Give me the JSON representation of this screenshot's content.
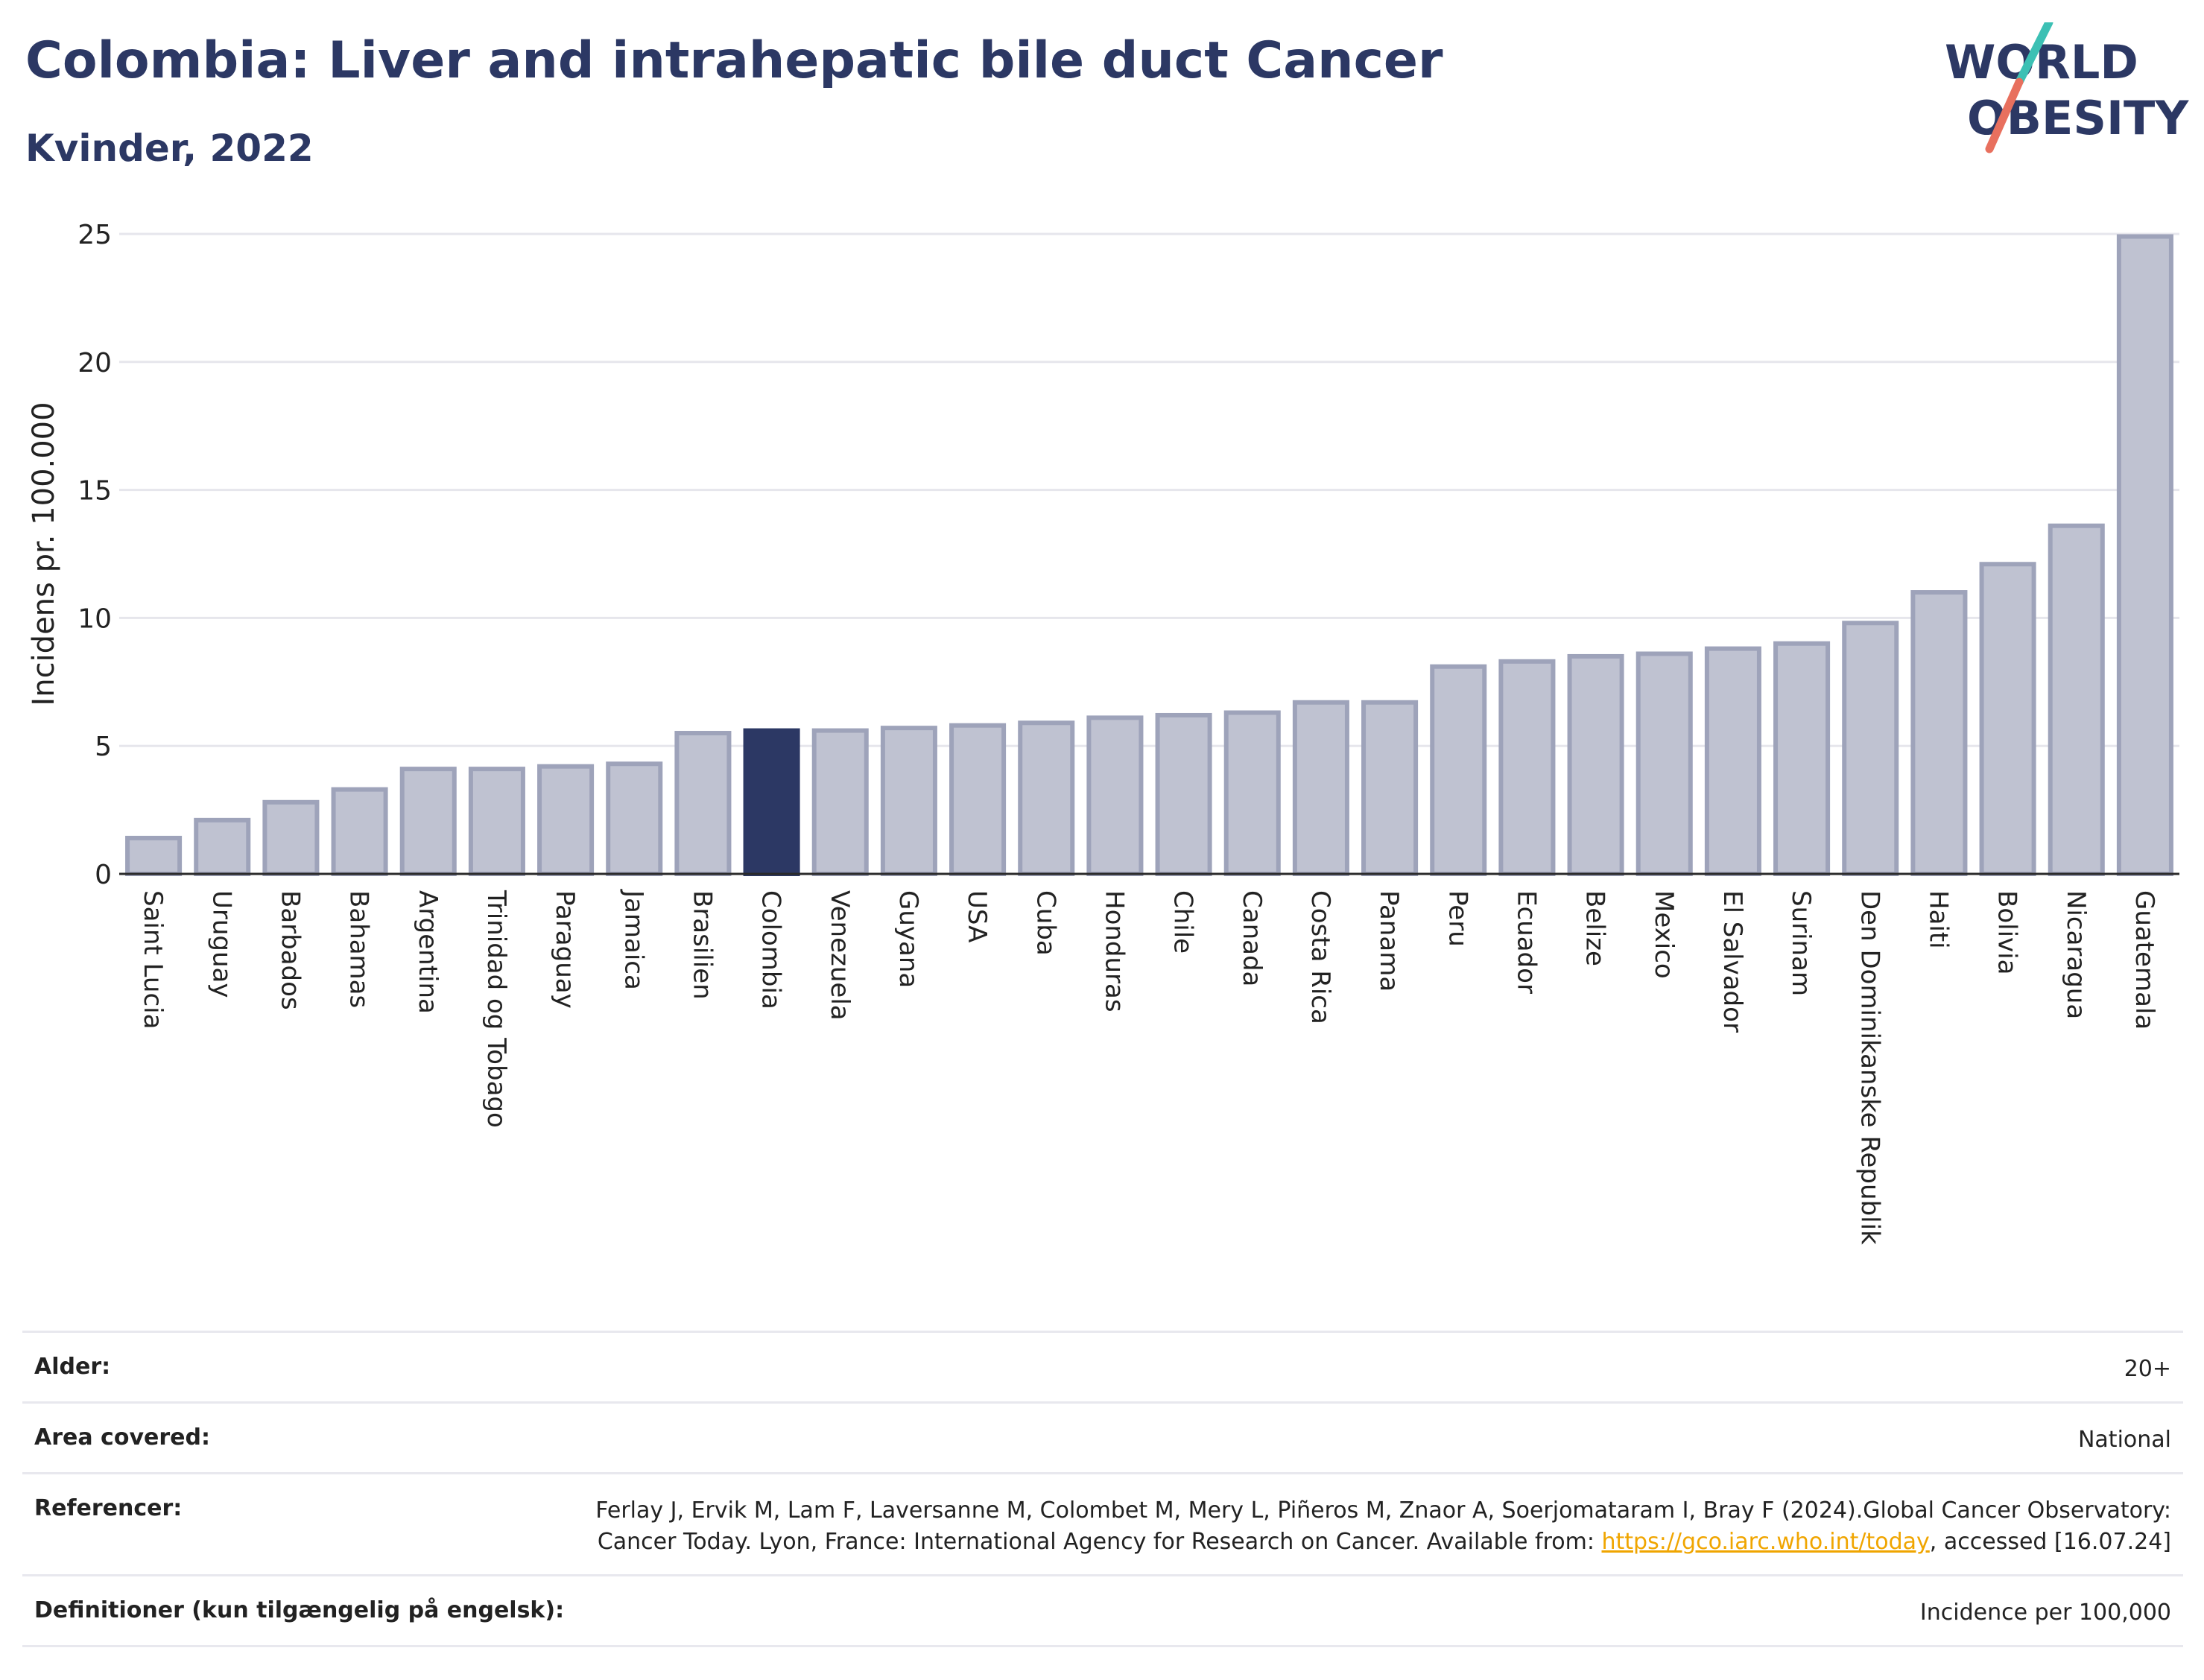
{
  "header": {
    "title": "Colombia: Liver and intrahepatic bile duct Cancer",
    "subtitle": "Kvinder, 2022",
    "logo_line1": "WORLD",
    "logo_line2": "OBESITY"
  },
  "colors": {
    "bar": "#bfc2d1",
    "bar_stroke": "#9ea3ba",
    "highlight": "#2c3864",
    "title": "#2c3864",
    "logo_teal": "#3cc0b4",
    "logo_coral": "#e8705e"
  },
  "chart_data": {
    "type": "bar",
    "title": "Colombia: Liver and intrahepatic bile duct Cancer",
    "subtitle": "Kvinder, 2022",
    "ylabel": "Incidens pr. 100.000",
    "xlabel": "",
    "ylim": [
      0,
      25
    ],
    "yticks": [
      0,
      5,
      10,
      15,
      20,
      25
    ],
    "grid": true,
    "highlight": "Colombia",
    "categories": [
      "Saint Lucia",
      "Uruguay",
      "Barbados",
      "Bahamas",
      "Argentina",
      "Trinidad og Tobago",
      "Paraguay",
      "Jamaica",
      "Brasilien",
      "Colombia",
      "Venezuela",
      "Guyana",
      "USA",
      "Cuba",
      "Honduras",
      "Chile",
      "Canada",
      "Costa Rica",
      "Panama",
      "Peru",
      "Ecuador",
      "Belize",
      "Mexico",
      "El Salvador",
      "Surinam",
      "Den Dominikanske Republik",
      "Haiti",
      "Bolivia",
      "Nicaragua",
      "Guatemala"
    ],
    "values": [
      1.4,
      2.1,
      2.8,
      3.3,
      4.1,
      4.1,
      4.2,
      4.3,
      5.5,
      5.6,
      5.6,
      5.7,
      5.8,
      5.9,
      6.1,
      6.2,
      6.3,
      6.7,
      6.7,
      8.1,
      8.3,
      8.5,
      8.6,
      8.8,
      9.0,
      9.8,
      11.0,
      12.1,
      13.6,
      24.9
    ]
  },
  "info": [
    {
      "label": "Alder:",
      "value": "20+"
    },
    {
      "label": "Area covered:",
      "value": "National"
    },
    {
      "label": "Referencer:",
      "value_pre": "Ferlay J, Ervik M, Lam F, Laversanne M, Colombet M, Mery L, Piñeros M, Znaor A, Soerjomataram I, Bray F (2024).Global Cancer Observatory: Cancer Today. Lyon, France: International Agency for Research on Cancer. Available from: ",
      "link": "https://gco.iarc.who.int/today",
      "value_post": ", accessed [16.07.24]"
    },
    {
      "label": "Definitioner (kun tilgængelig på engelsk):",
      "value": "Incidence per 100,000"
    }
  ]
}
